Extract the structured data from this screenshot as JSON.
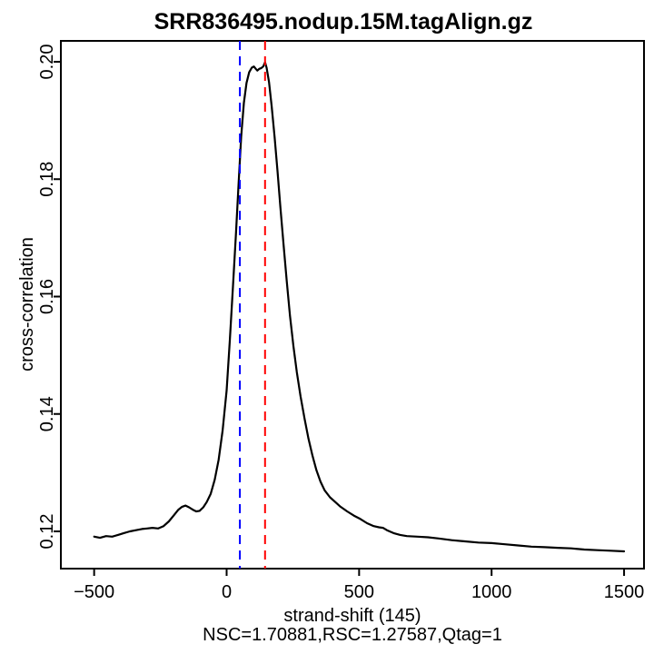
{
  "chart_data": {
    "type": "line",
    "title": "SRR836495.nodup.15M.tagAlign.gz",
    "xlabel": "strand-shift (145)",
    "stats_line": "NSC=1.70881,RSC=1.27587,Qtag=1",
    "ylabel": "cross-correlation",
    "xlim": [
      -628,
      1575
    ],
    "ylim": [
      0.1137,
      0.2036
    ],
    "grid": false,
    "legend_position": "none",
    "x_ticks": [
      {
        "value": -500,
        "label": "−500"
      },
      {
        "value": 0,
        "label": "0"
      },
      {
        "value": 500,
        "label": "500"
      },
      {
        "value": 1000,
        "label": "1000"
      },
      {
        "value": 1500,
        "label": "1500"
      }
    ],
    "y_ticks": [
      {
        "value": 0.12,
        "label": "0.12"
      },
      {
        "value": 0.14,
        "label": "0.14"
      },
      {
        "value": 0.16,
        "label": "0.16"
      },
      {
        "value": 0.18,
        "label": "0.18"
      },
      {
        "value": 0.2,
        "label": "0.20"
      }
    ],
    "colors": {
      "curve": "#000000",
      "phantom_peak_vline": "#0000ff",
      "fragment_length_vline": "#ff0000",
      "axis": "#000000",
      "background": "#ffffff"
    },
    "vlines": [
      {
        "name": "phantom-peak-shift",
        "x": 50,
        "color": "#0000ff",
        "style": "dashed"
      },
      {
        "name": "fragment-length-shift",
        "x": 145,
        "color": "#ff0000",
        "style": "dashed"
      }
    ],
    "series": [
      {
        "name": "cross-correlation",
        "color": "#000000",
        "points": [
          [
            -500,
            0.1191
          ],
          [
            -478,
            0.1189
          ],
          [
            -455,
            0.1192
          ],
          [
            -432,
            0.1191
          ],
          [
            -410,
            0.1194
          ],
          [
            -388,
            0.1197
          ],
          [
            -365,
            0.12
          ],
          [
            -342,
            0.1202
          ],
          [
            -320,
            0.1204
          ],
          [
            -300,
            0.1205
          ],
          [
            -280,
            0.1206
          ],
          [
            -258,
            0.1205
          ],
          [
            -238,
            0.1209
          ],
          [
            -218,
            0.1217
          ],
          [
            -198,
            0.1228
          ],
          [
            -182,
            0.1237
          ],
          [
            -168,
            0.1242
          ],
          [
            -155,
            0.1244
          ],
          [
            -142,
            0.1241
          ],
          [
            -128,
            0.1237
          ],
          [
            -115,
            0.1234
          ],
          [
            -102,
            0.1235
          ],
          [
            -88,
            0.1241
          ],
          [
            -75,
            0.125
          ],
          [
            -60,
            0.1264
          ],
          [
            -45,
            0.1288
          ],
          [
            -30,
            0.1322
          ],
          [
            -15,
            0.1372
          ],
          [
            0,
            0.144
          ],
          [
            12,
            0.1525
          ],
          [
            24,
            0.1618
          ],
          [
            35,
            0.1705
          ],
          [
            45,
            0.179
          ],
          [
            55,
            0.1872
          ],
          [
            65,
            0.193
          ],
          [
            75,
            0.1964
          ],
          [
            85,
            0.1982
          ],
          [
            95,
            0.199
          ],
          [
            103,
            0.1992
          ],
          [
            110,
            0.1988
          ],
          [
            116,
            0.1985
          ],
          [
            123,
            0.1988
          ],
          [
            130,
            0.1989
          ],
          [
            138,
            0.1992
          ],
          [
            145,
            0.1999
          ],
          [
            151,
            0.199
          ],
          [
            160,
            0.1965
          ],
          [
            170,
            0.1924
          ],
          [
            181,
            0.1872
          ],
          [
            192,
            0.1814
          ],
          [
            203,
            0.1752
          ],
          [
            215,
            0.1688
          ],
          [
            227,
            0.1626
          ],
          [
            239,
            0.1568
          ],
          [
            252,
            0.1516
          ],
          [
            265,
            0.1471
          ],
          [
            279,
            0.143
          ],
          [
            294,
            0.1392
          ],
          [
            309,
            0.1358
          ],
          [
            324,
            0.1329
          ],
          [
            339,
            0.1304
          ],
          [
            354,
            0.1285
          ],
          [
            370,
            0.127
          ],
          [
            390,
            0.1258
          ],
          [
            410,
            0.125
          ],
          [
            430,
            0.1242
          ],
          [
            455,
            0.1234
          ],
          [
            480,
            0.1227
          ],
          [
            505,
            0.1221
          ],
          [
            530,
            0.1214
          ],
          [
            555,
            0.1209
          ],
          [
            575,
            0.1207
          ],
          [
            590,
            0.1206
          ],
          [
            605,
            0.1202
          ],
          [
            630,
            0.1197
          ],
          [
            655,
            0.1194
          ],
          [
            680,
            0.1192
          ],
          [
            720,
            0.1191
          ],
          [
            760,
            0.119
          ],
          [
            800,
            0.1188
          ],
          [
            850,
            0.1185
          ],
          [
            900,
            0.1183
          ],
          [
            950,
            0.1181
          ],
          [
            1000,
            0.118
          ],
          [
            1050,
            0.1178
          ],
          [
            1100,
            0.1176
          ],
          [
            1150,
            0.1174
          ],
          [
            1200,
            0.1173
          ],
          [
            1250,
            0.1172
          ],
          [
            1300,
            0.1171
          ],
          [
            1350,
            0.1169
          ],
          [
            1400,
            0.1168
          ],
          [
            1450,
            0.1167
          ],
          [
            1500,
            0.1166
          ]
        ]
      }
    ]
  }
}
